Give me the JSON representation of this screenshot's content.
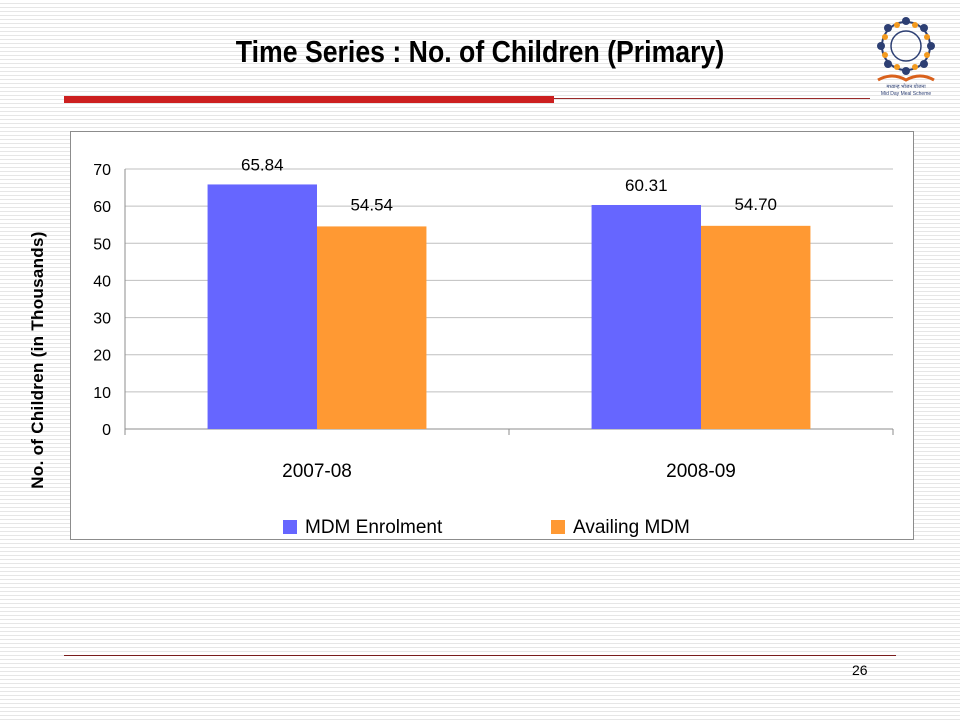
{
  "slide": {
    "title": "Time Series : No. of Children (Primary)",
    "page_number": "26",
    "logo_caption_1": "मध्यान्ह भोजन योजना",
    "logo_caption_2": "Mid Day Meal Scheme"
  },
  "chart_data": {
    "type": "bar",
    "title": "Time Series : No. of Children (Primary)",
    "ylabel": "No. of Children (in Thousands)",
    "xlabel": "",
    "categories": [
      "2007-08",
      "2008-09"
    ],
    "series": [
      {
        "name": "MDM Enrolment",
        "values": [
          65.84,
          60.31
        ],
        "labels": [
          "65.84",
          "60.31"
        ],
        "color": "#6666ff"
      },
      {
        "name": "Availing MDM",
        "values": [
          54.54,
          54.7
        ],
        "labels": [
          "54.54",
          "54.70"
        ],
        "color": "#ff9933"
      }
    ],
    "ylim": [
      0,
      70
    ],
    "yticks": [
      0,
      10,
      20,
      30,
      40,
      50,
      60,
      70
    ],
    "grid": true,
    "legend": "bottom"
  },
  "colors": {
    "accent_red": "#cc1f1f",
    "grid": "#bfbfbf"
  }
}
